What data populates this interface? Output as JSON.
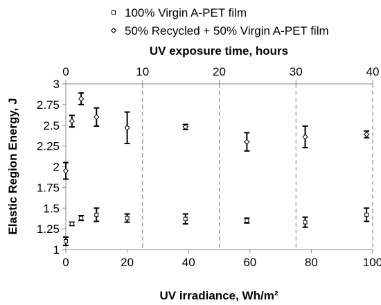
{
  "chart_data": {
    "type": "scatter",
    "xlabel": "UV irradiance, Wh/m²",
    "x2label": "UV exposure time, hours",
    "ylabel": "Elastic Region Energy, J",
    "xlim": [
      0,
      100
    ],
    "x2lim": [
      0,
      40
    ],
    "ylim": [
      1,
      3
    ],
    "x_ticks": [
      0,
      20,
      40,
      60,
      80,
      100
    ],
    "x2_ticks": [
      0,
      10,
      20,
      30,
      40
    ],
    "y_ticks": [
      "1",
      "1.25",
      "1.5",
      "1.75",
      "2",
      "2.25",
      "2.5",
      "2.75",
      "3"
    ],
    "vertical_reference_lines_x2": [
      10,
      20,
      30,
      40
    ],
    "legend_position": "top-left",
    "series": [
      {
        "name": "100% Virgin A-PET film",
        "marker": "square",
        "color": "#000000",
        "points": [
          {
            "x": 0,
            "y": 1.1,
            "err": 0.05
          },
          {
            "x": 2,
            "y": 1.31,
            "err": 0.02
          },
          {
            "x": 5,
            "y": 1.38,
            "err": 0.03
          },
          {
            "x": 10,
            "y": 1.42,
            "err": 0.08
          },
          {
            "x": 20,
            "y": 1.38,
            "err": 0.05
          },
          {
            "x": 39,
            "y": 1.37,
            "err": 0.06
          },
          {
            "x": 59,
            "y": 1.35,
            "err": 0.03
          },
          {
            "x": 78,
            "y": 1.33,
            "err": 0.06
          },
          {
            "x": 98,
            "y": 1.42,
            "err": 0.08
          }
        ]
      },
      {
        "name": "50% Recycled + 50% Virgin A-PET film",
        "marker": "diamond",
        "color": "#000000",
        "points": [
          {
            "x": 0,
            "y": 1.95,
            "err": 0.1
          },
          {
            "x": 2,
            "y": 2.55,
            "err": 0.07
          },
          {
            "x": 5,
            "y": 2.82,
            "err": 0.07
          },
          {
            "x": 10,
            "y": 2.6,
            "err": 0.11
          },
          {
            "x": 20,
            "y": 2.47,
            "err": 0.19
          },
          {
            "x": 39,
            "y": 2.48,
            "err": 0.03
          },
          {
            "x": 59,
            "y": 2.3,
            "err": 0.11
          },
          {
            "x": 78,
            "y": 2.36,
            "err": 0.13
          },
          {
            "x": 98,
            "y": 2.39,
            "err": 0.04
          }
        ]
      }
    ]
  }
}
